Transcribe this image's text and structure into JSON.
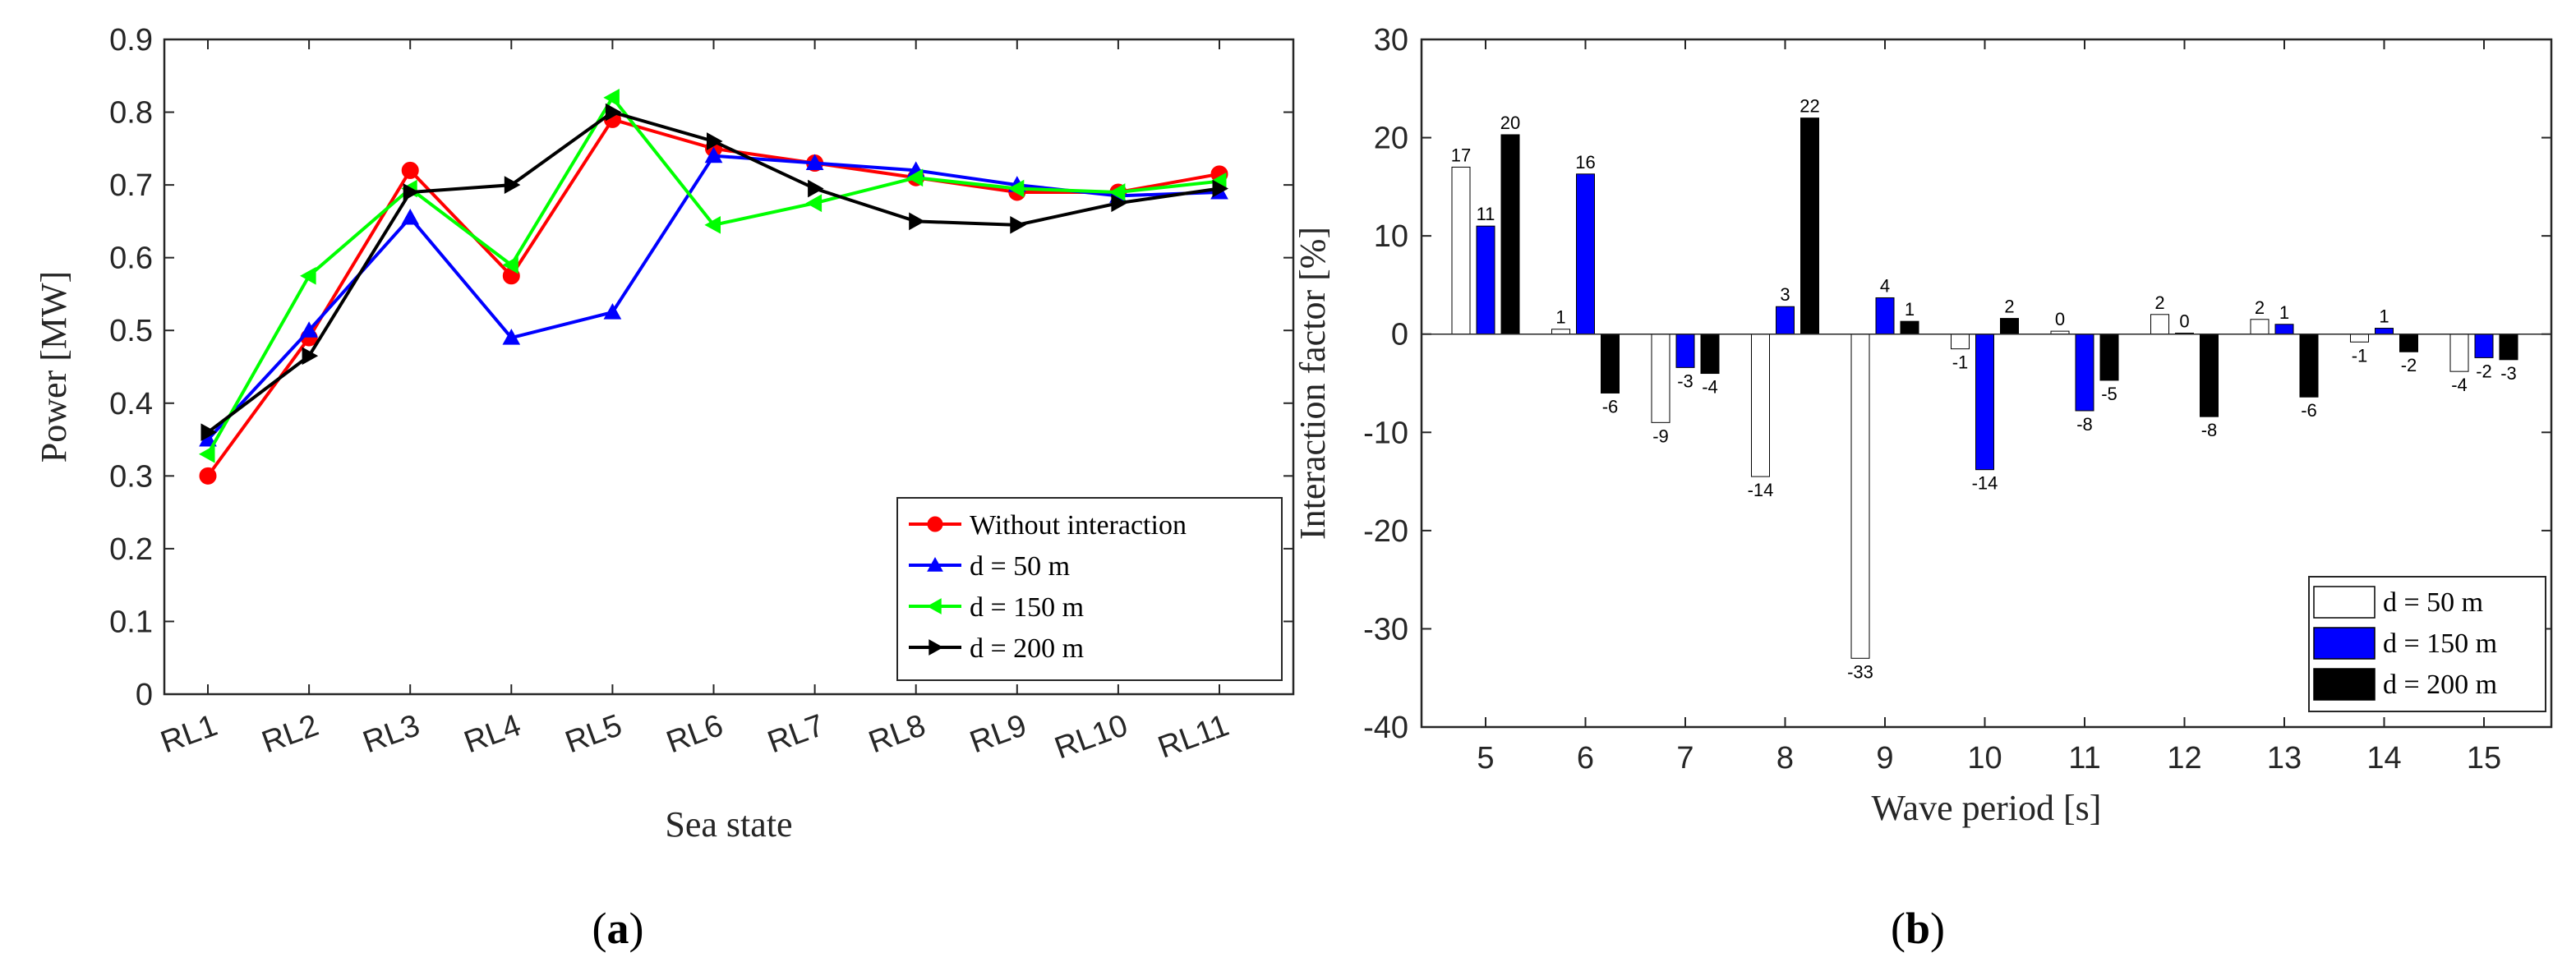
{
  "chart_data": [
    {
      "type": "line",
      "panel_label": "(a)",
      "panel_letter": "a",
      "xlabel": "Sea state",
      "ylabel": "Power [MW]",
      "categories": [
        "RL1",
        "RL2",
        "RL3",
        "RL4",
        "RL5",
        "RL6",
        "RL7",
        "RL8",
        "RL9",
        "RL10",
        "RL11"
      ],
      "ylim": [
        0,
        0.9
      ],
      "yticks": [
        0,
        0.1,
        0.2,
        0.3,
        0.4,
        0.5,
        0.6,
        0.7,
        0.8,
        0.9
      ],
      "ytick_labels": [
        "0",
        "0.1",
        "0.2",
        "0.3",
        "0.4",
        "0.5",
        "0.6",
        "0.7",
        "0.8",
        "0.9"
      ],
      "legend_position": "bottom-right",
      "series": [
        {
          "name": "Without interaction",
          "color": "#ff0000",
          "marker": "circle",
          "values": [
            0.3,
            0.49,
            0.72,
            0.575,
            0.79,
            0.75,
            0.73,
            0.71,
            0.69,
            0.69,
            0.715
          ]
        },
        {
          "name": "d = 50 m",
          "color": "#0000ff",
          "marker": "triangle-up",
          "values": [
            0.35,
            0.5,
            0.655,
            0.49,
            0.525,
            0.74,
            0.73,
            0.72,
            0.7,
            0.685,
            0.69
          ]
        },
        {
          "name": "d = 150 m",
          "color": "#00ff00",
          "marker": "triangle-left",
          "values": [
            0.33,
            0.575,
            0.695,
            0.59,
            0.82,
            0.645,
            0.675,
            0.71,
            0.695,
            0.69,
            0.705
          ]
        },
        {
          "name": "d = 200 m",
          "color": "#000000",
          "marker": "triangle-right",
          "values": [
            0.36,
            0.465,
            0.69,
            0.7,
            0.8,
            0.76,
            0.695,
            0.65,
            0.645,
            0.675,
            0.695
          ]
        }
      ]
    },
    {
      "type": "bar",
      "panel_label": "(b)",
      "panel_letter": "b",
      "xlabel": "Wave period [s]",
      "ylabel": "Interaction factor [%]",
      "categories": [
        "5",
        "6",
        "7",
        "8",
        "9",
        "10",
        "11",
        "12",
        "13",
        "14",
        "15"
      ],
      "ylim": [
        -40,
        30
      ],
      "yticks": [
        -40,
        -30,
        -20,
        -10,
        0,
        10,
        20,
        30
      ],
      "ytick_labels": [
        "-40",
        "-30",
        "-20",
        "-10",
        "0",
        "10",
        "20",
        "30"
      ],
      "legend_position": "bottom-right",
      "series": [
        {
          "name": "d = 50 m",
          "color": "#ffffff",
          "values": [
            17,
            0.5,
            -9,
            -14.5,
            -33,
            -1.5,
            0.3,
            2,
            1.5,
            -0.8,
            -3.8
          ],
          "labels": [
            "17",
            "1",
            "-9",
            "-14",
            "-33",
            "-1",
            "0",
            "2",
            "2",
            "-1",
            "-4"
          ]
        },
        {
          "name": "d = 150 m",
          "color": "#0000ff",
          "values": [
            11,
            16.3,
            -3.4,
            2.8,
            3.7,
            -13.8,
            -7.8,
            0.1,
            1,
            0.6,
            -2.4
          ],
          "labels": [
            "11",
            "16",
            "-3",
            "3",
            "4",
            "-14",
            "-8",
            "0",
            "1",
            "1",
            "-2"
          ]
        },
        {
          "name": "d = 200 m",
          "color": "#000000",
          "values": [
            20.3,
            -6,
            -4,
            22,
            1.3,
            1.6,
            -4.7,
            -8.4,
            -6.4,
            -1.8,
            -2.6
          ],
          "labels": [
            "20",
            "-6",
            "-4",
            "22",
            "1",
            "2",
            "-5",
            "-8",
            "-6",
            "-2",
            "-3"
          ]
        }
      ]
    }
  ]
}
